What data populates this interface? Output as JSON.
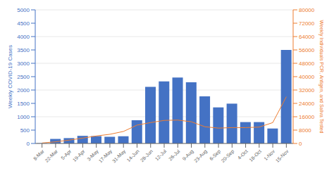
{
  "chart_data": {
    "type": "bar",
    "categories": [
      "8-Mar",
      "22-Mar",
      "5-Apr",
      "19-Apr",
      "3-May",
      "17-May",
      "31-May",
      "14-Jun",
      "28-Jun",
      "12-Jul",
      "26-Jul",
      "9-Aug",
      "23-Aug",
      "6-Sep",
      "20-Sep",
      "4-Oct",
      "18-Oct",
      "1-Nov",
      "15-Nov"
    ],
    "series": [
      {
        "type": "bar",
        "color": "#4472C4",
        "values": [
          10,
          170,
          200,
          285,
          275,
          250,
          270,
          870,
          2120,
          2320,
          2470,
          2290,
          1760,
          1350,
          1490,
          800,
          800,
          560,
          3500
        ]
      },
      {
        "type": "line",
        "color": "#ED7D31",
        "axis": "y2",
        "values": [
          300,
          1000,
          2000,
          3200,
          4500,
          5500,
          7200,
          11000,
          12500,
          13800,
          14000,
          13000,
          10000,
          9200,
          9500,
          9500,
          9800,
          12500,
          28000
        ]
      }
    ],
    "ylabel": "Weekly COVID-19 Cases",
    "y2label": "Weekly Individuals PCR, Antigen, and Saliva Tested",
    "ylim": [
      0,
      5000
    ],
    "yticks": [
      0,
      500,
      1000,
      1500,
      2000,
      2500,
      3000,
      3500,
      4000,
      4500,
      5000
    ],
    "y2lim": [
      0,
      80000
    ],
    "y2ticks": [
      0,
      8000,
      16000,
      24000,
      32000,
      40000,
      48000,
      56000,
      64000,
      72000,
      80000
    ],
    "grid": true
  }
}
